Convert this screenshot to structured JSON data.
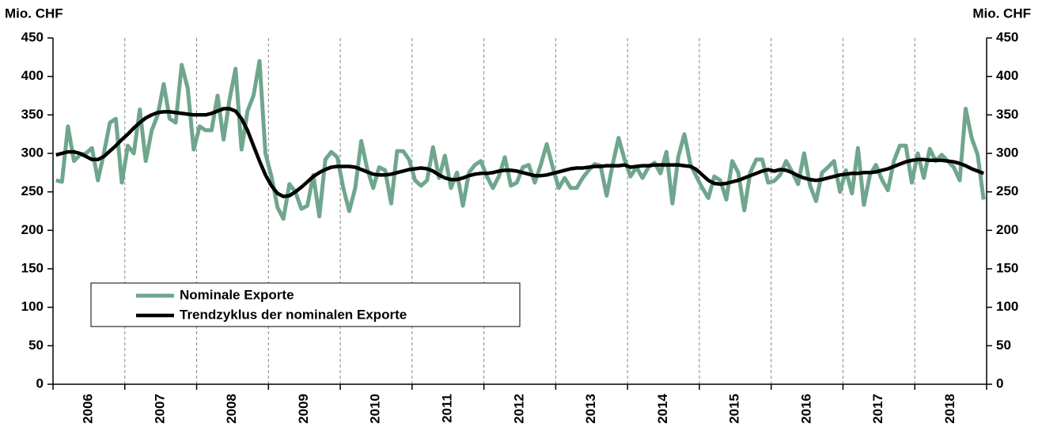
{
  "chart_data": {
    "type": "line",
    "ylabel": "Mio. CHF",
    "y2label": "Mio. CHF",
    "categories": [
      null,
      null,
      null,
      null,
      null,
      null,
      "2006",
      null,
      null,
      null,
      null,
      null,
      null,
      null,
      null,
      null,
      null,
      null,
      "2007",
      null,
      null,
      null,
      null,
      null,
      null,
      null,
      null,
      null,
      null,
      null,
      "2008",
      null,
      null,
      null,
      null,
      null,
      null,
      null,
      null,
      null,
      null,
      null,
      "2009",
      null,
      null,
      null,
      null,
      null,
      null,
      null,
      null,
      null,
      null,
      null,
      "2010",
      null,
      null,
      null,
      null,
      null,
      null,
      null,
      null,
      null,
      null,
      null,
      "2011",
      null,
      null,
      null,
      null,
      null,
      null,
      null,
      null,
      null,
      null,
      null,
      "2012",
      null,
      null,
      null,
      null,
      null,
      null,
      null,
      null,
      null,
      null,
      null,
      "2013",
      null,
      null,
      null,
      null,
      null,
      null,
      null,
      null,
      null,
      null,
      null,
      "2014",
      null,
      null,
      null,
      null,
      null,
      null,
      null,
      null,
      null,
      null,
      null,
      "2015",
      null,
      null,
      null,
      null,
      null,
      null,
      null,
      null,
      null,
      null,
      null,
      "2016",
      null,
      null,
      null,
      null,
      null,
      null,
      null,
      null,
      null,
      null,
      null,
      "2017",
      null,
      null,
      null,
      null,
      null,
      null,
      null,
      null,
      null,
      null,
      null,
      "2018",
      null,
      null,
      null,
      null,
      null
    ],
    "series": [
      {
        "name": "Nominale Exporte",
        "color": "#6fa68d",
        "values": [
          265,
          263,
          335,
          290,
          298,
          300,
          307,
          265,
          300,
          340,
          345,
          262,
          310,
          300,
          357,
          290,
          330,
          350,
          390,
          345,
          340,
          415,
          385,
          305,
          335,
          330,
          330,
          375,
          318,
          370,
          410,
          305,
          355,
          375,
          420,
          300,
          270,
          230,
          215,
          260,
          250,
          228,
          232,
          272,
          218,
          292,
          302,
          295,
          255,
          225,
          255,
          316,
          280,
          255,
          282,
          278,
          235,
          303,
          303,
          292,
          265,
          258,
          265,
          308,
          268,
          297,
          255,
          275,
          232,
          275,
          285,
          290,
          270,
          255,
          270,
          295,
          258,
          262,
          282,
          285,
          262,
          285,
          312,
          282,
          255,
          268,
          255,
          255,
          268,
          278,
          286,
          284,
          245,
          285,
          320,
          292,
          270,
          282,
          268,
          282,
          288,
          274,
          302,
          235,
          296,
          325,
          286,
          270,
          255,
          242,
          270,
          265,
          240,
          290,
          275,
          226,
          275,
          292,
          292,
          262,
          264,
          272,
          290,
          276,
          260,
          300,
          258,
          238,
          275,
          282,
          290,
          250,
          278,
          248,
          307,
          233,
          272,
          285,
          266,
          252,
          290,
          310,
          310,
          262,
          300,
          268,
          306,
          290,
          298,
          290,
          282,
          265,
          358,
          320,
          298,
          240
        ]
      },
      {
        "name": "Trendzyklus der nominalen Exporte",
        "color": "#000000",
        "values": [
          298,
          300,
          302,
          302,
          300,
          296,
          292,
          292,
          296,
          303,
          310,
          318,
          325,
          333,
          340,
          346,
          350,
          353,
          354,
          354,
          353,
          352,
          351,
          350,
          350,
          350,
          352,
          355,
          358,
          358,
          355,
          345,
          330,
          310,
          290,
          272,
          258,
          248,
          244,
          245,
          250,
          256,
          263,
          270,
          275,
          279,
          282,
          283,
          283,
          283,
          282,
          279,
          276,
          273,
          272,
          272,
          273,
          275,
          277,
          279,
          280,
          281,
          280,
          277,
          272,
          268,
          266,
          266,
          268,
          271,
          273,
          274,
          274,
          275,
          277,
          278,
          278,
          277,
          275,
          273,
          271,
          271,
          272,
          274,
          276,
          278,
          280,
          281,
          281,
          282,
          283,
          283,
          284,
          284,
          284,
          285,
          282,
          283,
          284,
          284,
          285,
          285,
          285,
          285,
          285,
          284,
          283,
          279,
          272,
          265,
          261,
          260,
          261,
          263,
          265,
          268,
          271,
          274,
          277,
          279,
          277,
          279,
          278,
          275,
          271,
          268,
          266,
          265,
          266,
          268,
          270,
          272,
          273,
          274,
          274,
          275,
          275,
          276,
          278,
          280,
          283,
          286,
          289,
          291,
          292,
          292,
          291,
          291,
          291,
          290,
          289,
          287,
          284,
          280,
          277,
          274
        ]
      }
    ],
    "ylim": [
      0,
      450
    ],
    "yticks": [
      0,
      50,
      100,
      150,
      200,
      250,
      300,
      350,
      400,
      450
    ],
    "y2lim": [
      0,
      450
    ],
    "y2ticks": [
      0,
      50,
      100,
      150,
      200,
      250,
      300,
      350,
      400,
      450
    ],
    "grid": true,
    "legend": "lower left"
  }
}
